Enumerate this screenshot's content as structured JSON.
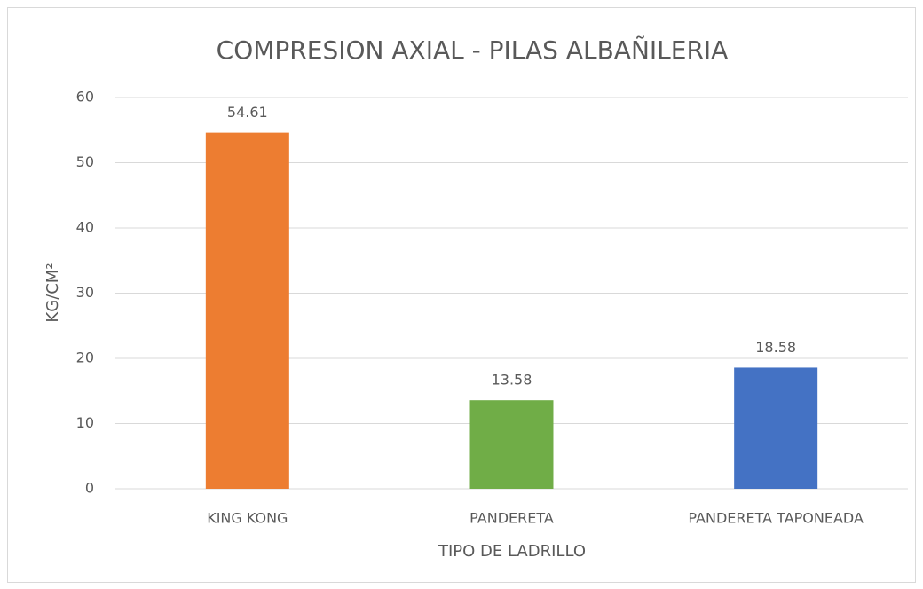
{
  "chart_data": {
    "type": "bar",
    "title": "COMPRESION AXIAL - PILAS ALBAÑILERIA",
    "xlabel": "TIPO DE LADRILLO",
    "ylabel": "KG/CM²",
    "categories": [
      "KING KONG",
      "PANDERETA",
      "PANDERETA TAPONEADA"
    ],
    "values": [
      54.61,
      13.58,
      18.58
    ],
    "colors": [
      "#ed7d31",
      "#70ad47",
      "#4472c4"
    ],
    "ylim": [
      0,
      60
    ],
    "yticks": [
      0,
      10,
      20,
      30,
      40,
      50,
      60
    ],
    "grid": true
  }
}
